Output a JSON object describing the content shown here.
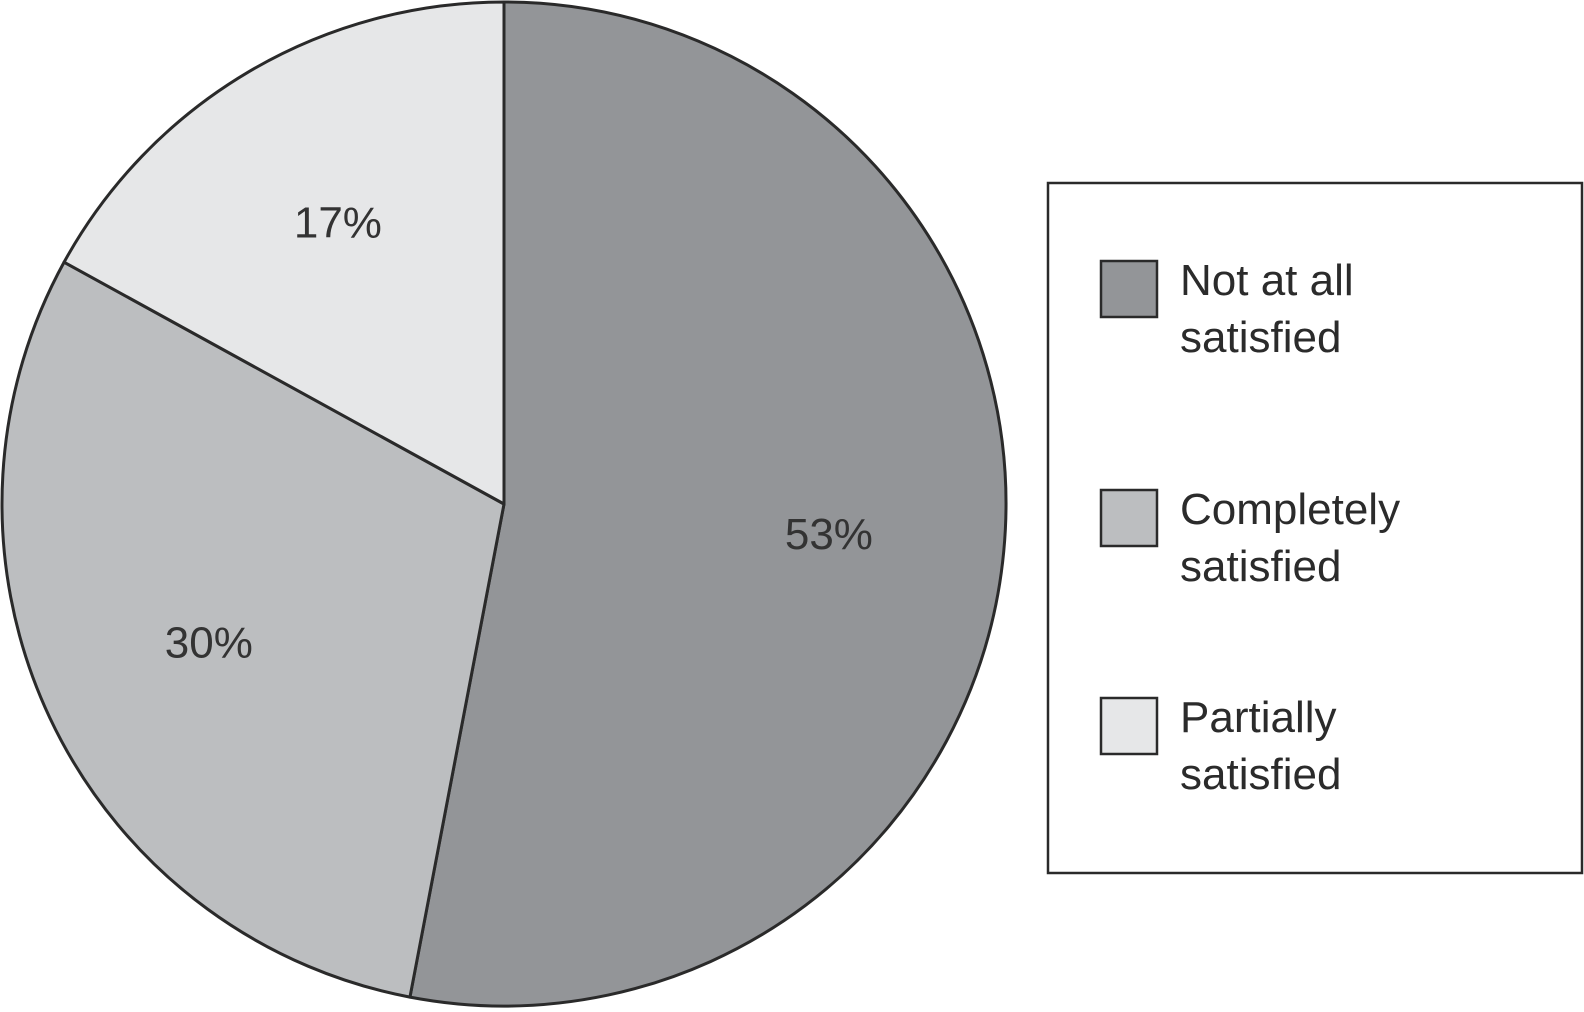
{
  "chart_data": {
    "type": "pie",
    "title": "",
    "start": "12 o'clock",
    "direction": "clockwise",
    "legend_position": "right",
    "slices": [
      {
        "label": "Not at all satisfied",
        "legend_lines": [
          "Not at all",
          "satisfied"
        ],
        "value": 53,
        "value_label": "53%",
        "color": "#939598"
      },
      {
        "label": "Completely satisfied",
        "legend_lines": [
          "Completely",
          "satisfied"
        ],
        "value": 30,
        "value_label": "30%",
        "color": "#bcbec0"
      },
      {
        "label": "Partially satisfied",
        "legend_lines": [
          "Partially",
          "satisfied"
        ],
        "value": 17,
        "value_label": "17%",
        "color": "#e6e7e8"
      }
    ]
  }
}
